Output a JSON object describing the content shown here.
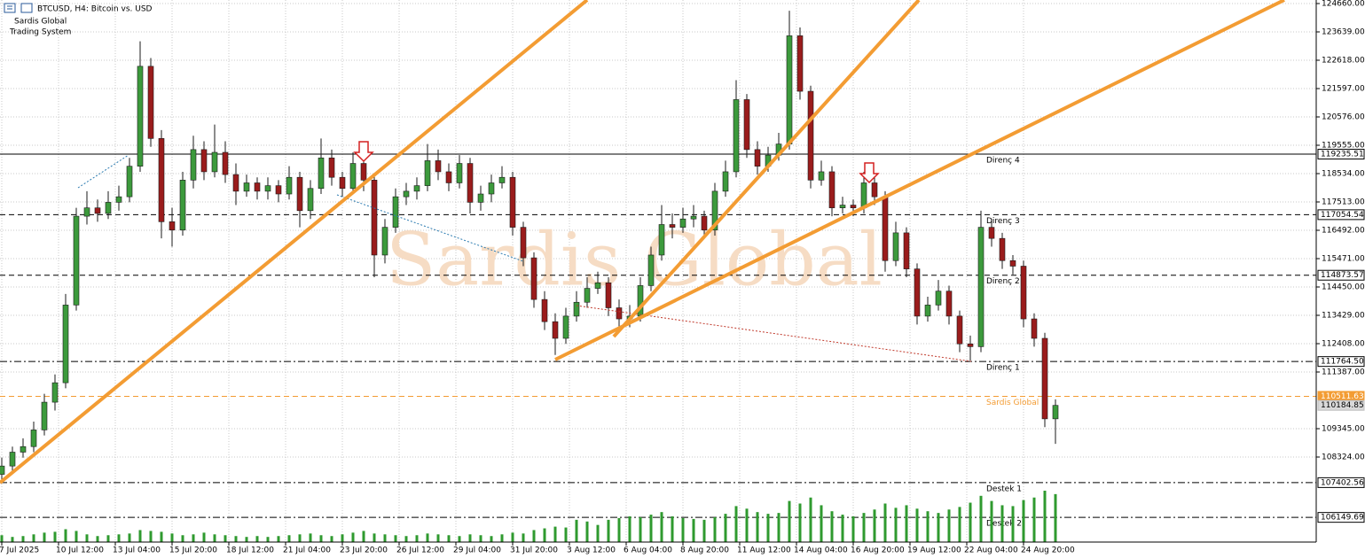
{
  "chart_data": {
    "type": "candlestick",
    "title": "BTCUSD, H4: Bitcoin vs. USD",
    "indicator": [
      "Sardis Global",
      "Trading System"
    ],
    "watermark": "Sardis Global",
    "up_color": "#3c9a3c",
    "down_color": "#9a1c1c",
    "volume_color": "#2f9a2f",
    "grid": true,
    "xlim": [
      -0.5,
      370.5
    ],
    "ylim": [
      105261,
      124788
    ],
    "yticks": [
      {
        "value": 124660,
        "label": "124660.00"
      },
      {
        "value": 123639,
        "label": "123639.00"
      },
      {
        "value": 122618,
        "label": "122618.00"
      },
      {
        "value": 121597,
        "label": "121597.00"
      },
      {
        "value": 120576,
        "label": "120576.00"
      },
      {
        "value": 119555,
        "label": "119555.00"
      },
      {
        "value": 118534,
        "label": "118534.00"
      },
      {
        "value": 117513,
        "label": "117513.00"
      },
      {
        "value": 116492,
        "label": "116492.00"
      },
      {
        "value": 115471,
        "label": "115471.00"
      },
      {
        "value": 114450,
        "label": "114450.00"
      },
      {
        "value": 113429,
        "label": "113429.00"
      },
      {
        "value": 112408,
        "label": "112408.00"
      },
      {
        "value": 111387,
        "label": "111387.00"
      },
      {
        "value": 109345,
        "label": "109345.00"
      },
      {
        "value": 108324,
        "label": "108324.00"
      }
    ],
    "xticks": [
      {
        "value": 0,
        "label": "7 Jul 2025"
      },
      {
        "value": 16,
        "label": "10 Jul 12:00"
      },
      {
        "value": 32,
        "label": "13 Jul 04:00"
      },
      {
        "value": 48,
        "label": "15 Jul 20:00"
      },
      {
        "value": 64,
        "label": "18 Jul 12:00"
      },
      {
        "value": 80,
        "label": "21 Jul 04:00"
      },
      {
        "value": 96,
        "label": "23 Jul 20:00"
      },
      {
        "value": 112,
        "label": "26 Jul 12:00"
      },
      {
        "value": 128,
        "label": "29 Jul 04:00"
      },
      {
        "value": 144,
        "label": "31 Jul 20:00"
      },
      {
        "value": 160,
        "label": "3 Aug 12:00"
      },
      {
        "value": 176,
        "label": "6 Aug 04:00"
      },
      {
        "value": 192,
        "label": "8 Aug 20:00"
      },
      {
        "value": 208,
        "label": "11 Aug 12:00"
      },
      {
        "value": 224,
        "label": "14 Aug 04:00"
      },
      {
        "value": 240,
        "label": "16 Aug 20:00"
      },
      {
        "value": 256,
        "label": "19 Aug 12:00"
      },
      {
        "value": 272,
        "label": "22 Aug 04:00"
      },
      {
        "value": 288,
        "label": "24 Aug 20:00"
      }
    ],
    "levels": [
      {
        "name": "Direnç 4",
        "price": 119235.51,
        "color": "#000000",
        "style": "solid"
      },
      {
        "name": "Direnç 3",
        "price": 117054.54,
        "color": "#000000",
        "style": "dash"
      },
      {
        "name": "Direnç 2",
        "price": 114873.57,
        "color": "#000000",
        "style": "dash"
      },
      {
        "name": "Direnç 1",
        "price": {
          "value": 111764.5,
          "label": "111764.50"
        },
        "color": "#000000",
        "style": "dashdot"
      },
      {
        "name": "Sardis Global",
        "price": 110511.63,
        "color": "#f39c33",
        "style": "dash"
      },
      {
        "name": "Destek 1",
        "price": 107402.56,
        "color": "#000000",
        "style": "dashdot"
      },
      {
        "name": "Destek 2",
        "price": 106149.69,
        "color": "#000000",
        "style": "dashdot"
      }
    ],
    "current_price": 110184.85,
    "x": [
      0,
      3,
      6,
      9,
      12,
      15,
      18,
      21,
      24,
      27,
      30,
      33,
      36,
      39,
      42,
      45,
      48,
      51,
      54,
      57,
      60,
      63,
      66,
      69,
      72,
      75,
      78,
      81,
      84,
      87,
      90,
      93,
      96,
      99,
      102,
      105,
      108,
      111,
      114,
      117,
      120,
      123,
      126,
      129,
      132,
      135,
      138,
      141,
      144,
      147,
      150,
      153,
      156,
      159,
      162,
      165,
      168,
      171,
      174,
      177,
      180,
      183,
      186,
      189,
      192,
      195,
      198,
      201,
      204,
      207,
      210,
      213,
      216,
      219,
      222,
      225,
      228,
      231,
      234,
      237,
      240,
      243,
      246,
      249,
      252,
      255,
      258,
      261,
      264,
      267,
      270,
      273,
      276,
      279,
      282,
      285,
      288,
      291,
      294,
      297
    ],
    "ohlc": [
      [
        107700,
        108300,
        107400,
        108000
      ],
      [
        108000,
        108700,
        107800,
        108500
      ],
      [
        108500,
        109000,
        108300,
        108700
      ],
      [
        108700,
        109600,
        108500,
        109300
      ],
      [
        109300,
        110600,
        109100,
        110300
      ],
      [
        110300,
        111300,
        110000,
        111000
      ],
      [
        111000,
        114200,
        110800,
        113800
      ],
      [
        113800,
        117300,
        113600,
        117000
      ],
      [
        117000,
        117900,
        116700,
        117300
      ],
      [
        117300,
        117600,
        116800,
        117100
      ],
      [
        117100,
        117900,
        116900,
        117500
      ],
      [
        117500,
        118100,
        117200,
        117700
      ],
      [
        117700,
        119100,
        117500,
        118800
      ],
      [
        118800,
        123300,
        118600,
        122400
      ],
      [
        122400,
        122700,
        119500,
        119800
      ],
      [
        119800,
        120100,
        116200,
        116800
      ],
      [
        116800,
        117300,
        115900,
        116500
      ],
      [
        116500,
        118600,
        116300,
        118300
      ],
      [
        118300,
        119900,
        118000,
        119400
      ],
      [
        119400,
        119700,
        118300,
        118600
      ],
      [
        118600,
        120300,
        118400,
        119300
      ],
      [
        119300,
        119700,
        118200,
        118500
      ],
      [
        118500,
        118900,
        117400,
        117900
      ],
      [
        117900,
        118500,
        117700,
        118200
      ],
      [
        118200,
        118400,
        117600,
        117900
      ],
      [
        117900,
        118400,
        117600,
        118100
      ],
      [
        118100,
        118300,
        117500,
        117800
      ],
      [
        117800,
        118800,
        117600,
        118400
      ],
      [
        118400,
        118600,
        116600,
        117200
      ],
      [
        117200,
        118300,
        116900,
        118000
      ],
      [
        118000,
        119800,
        117800,
        119100
      ],
      [
        119100,
        119400,
        118100,
        118400
      ],
      [
        118400,
        118600,
        117700,
        118000
      ],
      [
        118000,
        119300,
        117800,
        118900
      ],
      [
        118900,
        119200,
        117900,
        118300
      ],
      [
        118300,
        118500,
        114800,
        115600
      ],
      [
        115600,
        116900,
        115300,
        116600
      ],
      [
        116600,
        118000,
        116400,
        117700
      ],
      [
        117700,
        118200,
        117400,
        117900
      ],
      [
        117900,
        118400,
        117600,
        118100
      ],
      [
        118100,
        119600,
        117900,
        119000
      ],
      [
        119000,
        119400,
        118300,
        118600
      ],
      [
        118600,
        118900,
        117900,
        118200
      ],
      [
        118200,
        119200,
        118000,
        118900
      ],
      [
        118900,
        119100,
        117100,
        117500
      ],
      [
        117500,
        118100,
        117200,
        117800
      ],
      [
        117800,
        118500,
        117500,
        118200
      ],
      [
        118200,
        118800,
        118000,
        118400
      ],
      [
        118400,
        118600,
        116300,
        116600
      ],
      [
        116600,
        116800,
        115200,
        115500
      ],
      [
        115500,
        115700,
        113700,
        114000
      ],
      [
        114000,
        114300,
        112900,
        113200
      ],
      [
        113200,
        113500,
        112000,
        112600
      ],
      [
        112600,
        113700,
        112400,
        113400
      ],
      [
        113400,
        114300,
        113200,
        113900
      ],
      [
        113900,
        114800,
        113700,
        114400
      ],
      [
        114400,
        115000,
        114200,
        114600
      ],
      [
        114600,
        114800,
        113400,
        113700
      ],
      [
        113700,
        114000,
        112900,
        113300
      ],
      [
        113300,
        113800,
        113000,
        113400
      ],
      [
        113400,
        114800,
        113200,
        114500
      ],
      [
        114500,
        115900,
        114300,
        115600
      ],
      [
        115600,
        117400,
        115400,
        116700
      ],
      [
        116700,
        117100,
        116200,
        116600
      ],
      [
        116600,
        117300,
        116400,
        116900
      ],
      [
        116900,
        117400,
        116600,
        117000
      ],
      [
        117000,
        117200,
        116200,
        116500
      ],
      [
        116500,
        118200,
        116300,
        117900
      ],
      [
        117900,
        119000,
        117700,
        118600
      ],
      [
        118600,
        121900,
        118400,
        121200
      ],
      [
        121200,
        121400,
        119100,
        119400
      ],
      [
        119400,
        119700,
        118500,
        118800
      ],
      [
        118800,
        119500,
        118600,
        119200
      ],
      [
        119200,
        120000,
        119000,
        119600
      ],
      [
        119600,
        124400,
        119400,
        123500
      ],
      [
        123500,
        123800,
        121200,
        121500
      ],
      [
        121500,
        121700,
        118000,
        118300
      ],
      [
        118300,
        119000,
        118100,
        118600
      ],
      [
        118600,
        118800,
        117000,
        117300
      ],
      [
        117300,
        117700,
        117100,
        117400
      ],
      [
        117400,
        117600,
        117000,
        117300
      ],
      [
        117300,
        118600,
        117100,
        118200
      ],
      [
        118200,
        118400,
        117400,
        117700
      ],
      [
        117700,
        117900,
        115000,
        115400
      ],
      [
        115400,
        116800,
        115200,
        116400
      ],
      [
        116400,
        116600,
        114800,
        115100
      ],
      [
        115100,
        115300,
        113100,
        113400
      ],
      [
        113400,
        114100,
        113200,
        113800
      ],
      [
        113800,
        114700,
        113600,
        114300
      ],
      [
        114300,
        114500,
        113100,
        113400
      ],
      [
        113400,
        113600,
        112100,
        112400
      ],
      [
        112400,
        112700,
        111800,
        112300
      ],
      [
        112300,
        117200,
        112100,
        116600
      ],
      [
        116600,
        116900,
        115900,
        116200
      ],
      [
        116200,
        116400,
        115100,
        115400
      ],
      [
        115400,
        115600,
        114900,
        115200
      ],
      [
        115200,
        115400,
        113000,
        113300
      ],
      [
        113300,
        113500,
        112300,
        112600
      ],
      [
        112600,
        112800,
        109400,
        109700
      ],
      [
        109700,
        110400,
        108800,
        110184.85
      ]
    ],
    "volume": [
      800,
      600,
      700,
      900,
      1100,
      1200,
      1500,
      1300,
      900,
      700,
      800,
      900,
      1000,
      1400,
      1300,
      1200,
      1000,
      800,
      900,
      1100,
      900,
      800,
      700,
      600,
      700,
      600,
      700,
      800,
      900,
      1000,
      800,
      700,
      900,
      1100,
      1300,
      1000,
      900,
      800,
      700,
      800,
      1000,
      900,
      800,
      700,
      900,
      800,
      700,
      900,
      1100,
      1000,
      1400,
      1600,
      1800,
      1700,
      2600,
      2400,
      2000,
      2600,
      2800,
      3000,
      2900,
      3200,
      3500,
      3000,
      2800,
      2700,
      2600,
      2900,
      3300,
      4200,
      3900,
      3500,
      3300,
      3400,
      4800,
      4500,
      5200,
      4300,
      3600,
      3200,
      3000,
      3400,
      3800,
      4500,
      4000,
      4300,
      3900,
      3600,
      3400,
      3800,
      4100,
      4600,
      5400,
      4800,
      4300,
      4200,
      4900,
      5200,
      6000,
      5600
    ]
  }
}
